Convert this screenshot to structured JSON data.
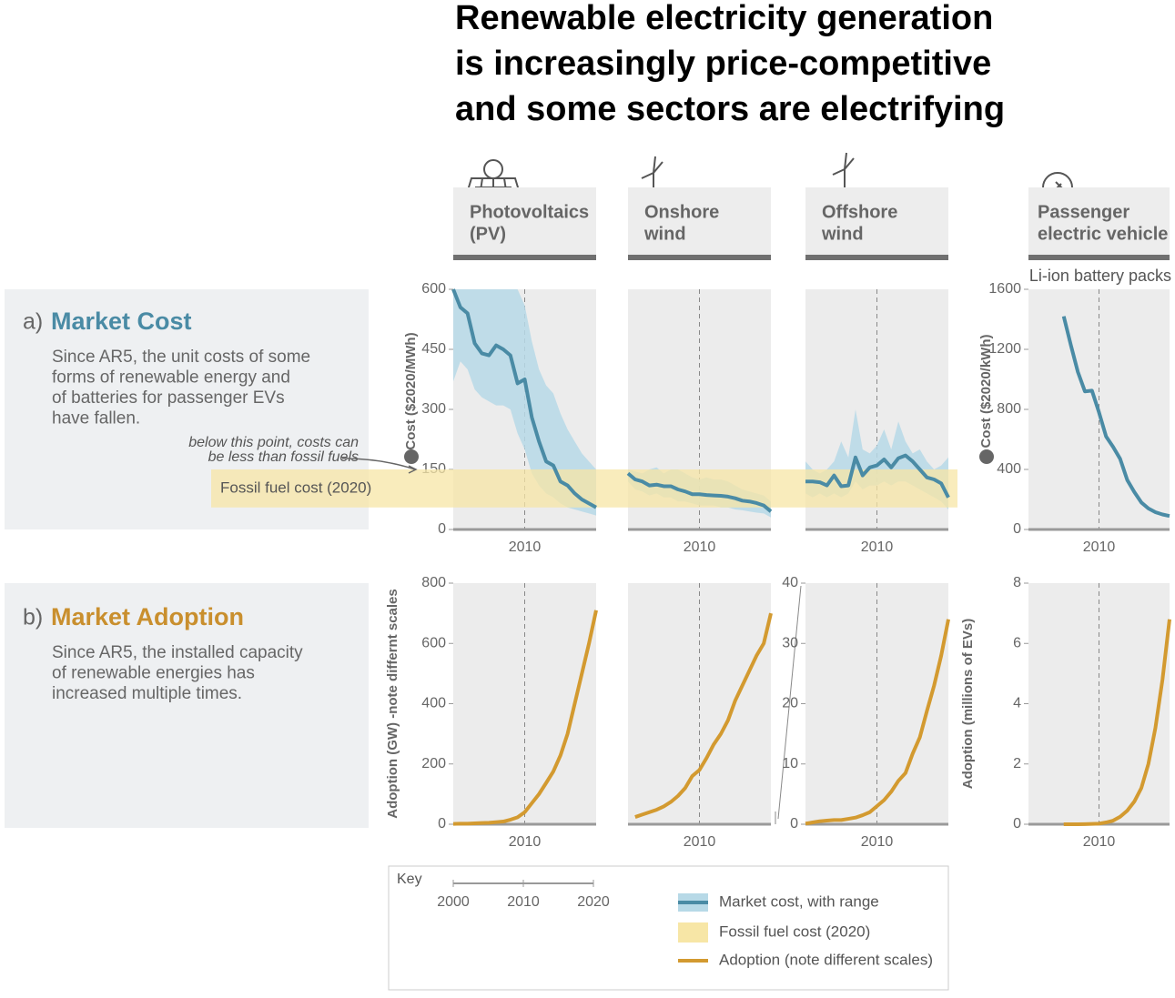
{
  "title": [
    "Renewable electricity generation",
    "is increasingly price-competitive",
    "and some sectors are electrifying"
  ],
  "technologies": [
    {
      "label": [
        "Photovoltaics",
        "(PV)"
      ]
    },
    {
      "label": [
        "Onshore",
        "wind"
      ]
    },
    {
      "label": [
        "Offshore",
        "wind"
      ]
    },
    {
      "label": [
        "Passenger",
        "electric vehicle"
      ]
    }
  ],
  "rows": [
    {
      "prefix": "a)",
      "heading": "Market Cost",
      "color": "#4a8ba5",
      "text": [
        "Since AR5, the unit costs of some",
        "forms of renewable energy and",
        "of batteries for passenger EVs",
        "have fallen."
      ]
    },
    {
      "prefix": "b)",
      "heading": "Market Adoption",
      "color": "#c98f2e",
      "text": [
        "Since AR5, the installed capacity",
        "of renewable energies has",
        "increased multiple times."
      ]
    }
  ],
  "annotation": [
    "below this point, costs can",
    "be less than fossil fuels"
  ],
  "fossil_fuel_cost": {
    "label": "Fossil fuel cost (2020)",
    "range": [
      55,
      150
    ],
    "color": "#f7e6a6"
  },
  "key": {
    "title": "Key",
    "xlim": [
      2000,
      2020
    ],
    "xticks": [
      2000,
      2010,
      2020
    ],
    "items": [
      "Market cost, with range",
      "Fossil fuel cost (2020)",
      "Adoption (note different scales)"
    ]
  },
  "chart_data": [
    {
      "type": "line",
      "ylabel": "Cost ($2020/MWh)",
      "x": [
        2000,
        2001,
        2002,
        2003,
        2004,
        2005,
        2006,
        2007,
        2008,
        2009,
        2010,
        2011,
        2012,
        2013,
        2014,
        2015,
        2016,
        2017,
        2018,
        2019,
        2020
      ],
      "series": [
        {
          "color": "#4a8ba5",
          "range_color": "#b7d9e7",
          "values": [
            600,
            555,
            540,
            465,
            440,
            435,
            460,
            450,
            435,
            365,
            375,
            280,
            220,
            170,
            160,
            120,
            110,
            90,
            75,
            65,
            55
          ],
          "range_low": [
            370,
            420,
            400,
            350,
            330,
            320,
            310,
            310,
            300,
            240,
            200,
            140,
            110,
            90,
            80,
            65,
            55,
            50,
            45,
            40,
            35
          ],
          "range_high": [
            600,
            600,
            600,
            600,
            600,
            600,
            600,
            600,
            600,
            600,
            560,
            470,
            400,
            360,
            340,
            290,
            250,
            220,
            190,
            170,
            150
          ]
        }
      ],
      "xlim": [
        2000,
        2020
      ],
      "xticks": [
        2010
      ],
      "ylim": [
        0,
        600
      ],
      "yticks": [
        0,
        150,
        300,
        450,
        600
      ]
    },
    {
      "type": "line",
      "x": [
        2000,
        2001,
        2002,
        2003,
        2004,
        2005,
        2006,
        2007,
        2008,
        2009,
        2010,
        2011,
        2012,
        2013,
        2014,
        2015,
        2016,
        2017,
        2018,
        2019,
        2020
      ],
      "series": [
        {
          "color": "#4a8ba5",
          "range_color": "#b7d9e7",
          "values": [
            140,
            125,
            120,
            110,
            112,
            108,
            108,
            100,
            95,
            88,
            88,
            86,
            85,
            84,
            82,
            78,
            72,
            70,
            66,
            60,
            45
          ],
          "range_low": [
            120,
            100,
            95,
            85,
            90,
            80,
            80,
            70,
            70,
            65,
            60,
            60,
            60,
            55,
            55,
            50,
            48,
            45,
            42,
            40,
            30
          ],
          "range_high": [
            150,
            145,
            140,
            150,
            155,
            140,
            150,
            150,
            140,
            130,
            125,
            130,
            125,
            125,
            120,
            110,
            100,
            95,
            90,
            85,
            70
          ]
        }
      ],
      "xlim": [
        2000,
        2020
      ],
      "xticks": [
        2010
      ],
      "ylim": [
        0,
        600
      ]
    },
    {
      "type": "line",
      "x": [
        2000,
        2001,
        2002,
        2003,
        2004,
        2005,
        2006,
        2007,
        2008,
        2009,
        2010,
        2011,
        2012,
        2013,
        2014,
        2015,
        2016,
        2017,
        2018,
        2019,
        2020
      ],
      "series": [
        {
          "color": "#4a8ba5",
          "range_color": "#b7d9e7",
          "values": [
            120,
            120,
            118,
            110,
            135,
            108,
            110,
            180,
            135,
            155,
            160,
            175,
            155,
            178,
            185,
            170,
            150,
            130,
            125,
            115,
            80
          ],
          "range_low": [
            90,
            80,
            90,
            80,
            90,
            80,
            90,
            120,
            100,
            110,
            110,
            120,
            110,
            120,
            120,
            110,
            100,
            90,
            80,
            70,
            50
          ],
          "range_high": [
            170,
            150,
            140,
            150,
            170,
            220,
            180,
            300,
            200,
            190,
            210,
            250,
            200,
            270,
            220,
            190,
            200,
            170,
            150,
            160,
            180
          ]
        }
      ],
      "xlim": [
        2000,
        2020
      ],
      "xticks": [
        2010
      ],
      "ylim": [
        0,
        600
      ]
    },
    {
      "type": "line",
      "subtitle": "Li-ion battery packs",
      "ylabel": "Cost ($2020/kWh)",
      "x": [
        2005,
        2006,
        2007,
        2008,
        2009,
        2010,
        2011,
        2012,
        2013,
        2014,
        2015,
        2016,
        2017,
        2018,
        2019,
        2020
      ],
      "series": [
        {
          "color": "#4a8ba5",
          "values": [
            1420,
            1230,
            1050,
            920,
            925,
            780,
            620,
            550,
            470,
            330,
            250,
            180,
            140,
            115,
            100,
            90
          ]
        }
      ],
      "xlim": [
        2000,
        2020
      ],
      "xticks": [
        2010
      ],
      "ylim": [
        0,
        1600
      ],
      "yticks": [
        0,
        400,
        800,
        1200,
        1600
      ]
    },
    {
      "type": "line",
      "ylabel": "Adoption (GW) -note differnt scales",
      "x": [
        2000,
        2001,
        2002,
        2003,
        2004,
        2005,
        2006,
        2007,
        2008,
        2009,
        2010,
        2011,
        2012,
        2013,
        2014,
        2015,
        2016,
        2017,
        2018,
        2019,
        2020
      ],
      "series": [
        {
          "color": "#d39a30",
          "values": [
            1,
            2,
            2,
            3,
            4,
            5,
            7,
            9,
            15,
            23,
            40,
            70,
            100,
            137,
            175,
            228,
            300,
            400,
            500,
            600,
            710
          ]
        }
      ],
      "xlim": [
        2000,
        2020
      ],
      "xticks": [
        2010
      ],
      "ylim": [
        0,
        800
      ],
      "yticks": [
        0,
        200,
        400,
        600,
        800
      ]
    },
    {
      "type": "line",
      "x": [
        2001,
        2002,
        2003,
        2004,
        2005,
        2006,
        2007,
        2008,
        2009,
        2010,
        2011,
        2012,
        2013,
        2014,
        2015,
        2016,
        2017,
        2018,
        2019,
        2020
      ],
      "series": [
        {
          "color": "#d39a30",
          "values": [
            24,
            32,
            40,
            48,
            59,
            74,
            94,
            120,
            160,
            180,
            220,
            265,
            300,
            345,
            410,
            460,
            510,
            560,
            600,
            700
          ]
        }
      ],
      "xlim": [
        2000,
        2020
      ],
      "xticks": [
        2010
      ],
      "ylim": [
        0,
        800
      ]
    },
    {
      "type": "line",
      "x": [
        2000,
        2001,
        2002,
        2003,
        2004,
        2005,
        2006,
        2007,
        2008,
        2009,
        2010,
        2011,
        2012,
        2013,
        2014,
        2015,
        2016,
        2017,
        2018,
        2019,
        2020
      ],
      "series": [
        {
          "color": "#d39a30",
          "values": [
            0.1,
            0.3,
            0.5,
            0.6,
            0.7,
            0.7,
            0.9,
            1.1,
            1.5,
            2,
            3,
            4,
            5.4,
            7.2,
            8.5,
            11.7,
            14.4,
            18.8,
            23,
            28,
            34
          ]
        }
      ],
      "xlim": [
        2000,
        2020
      ],
      "xticks": [
        2010
      ],
      "ylim": [
        0,
        40
      ],
      "yticks": [
        0,
        10,
        20,
        30,
        40
      ]
    },
    {
      "type": "line",
      "ylabel": "Adoption (millions of EVs)",
      "x": [
        2005,
        2006,
        2007,
        2008,
        2009,
        2010,
        2011,
        2012,
        2013,
        2014,
        2015,
        2016,
        2017,
        2018,
        2019,
        2020
      ],
      "series": [
        {
          "color": "#d39a30",
          "values": [
            0,
            0,
            0,
            0.005,
            0.01,
            0.02,
            0.06,
            0.12,
            0.25,
            0.45,
            0.75,
            1.2,
            2,
            3.2,
            4.8,
            6.8
          ]
        }
      ],
      "xlim": [
        2000,
        2020
      ],
      "xticks": [
        2010
      ],
      "ylim": [
        0,
        8
      ],
      "yticks": [
        0,
        2,
        4,
        6,
        8
      ]
    }
  ]
}
